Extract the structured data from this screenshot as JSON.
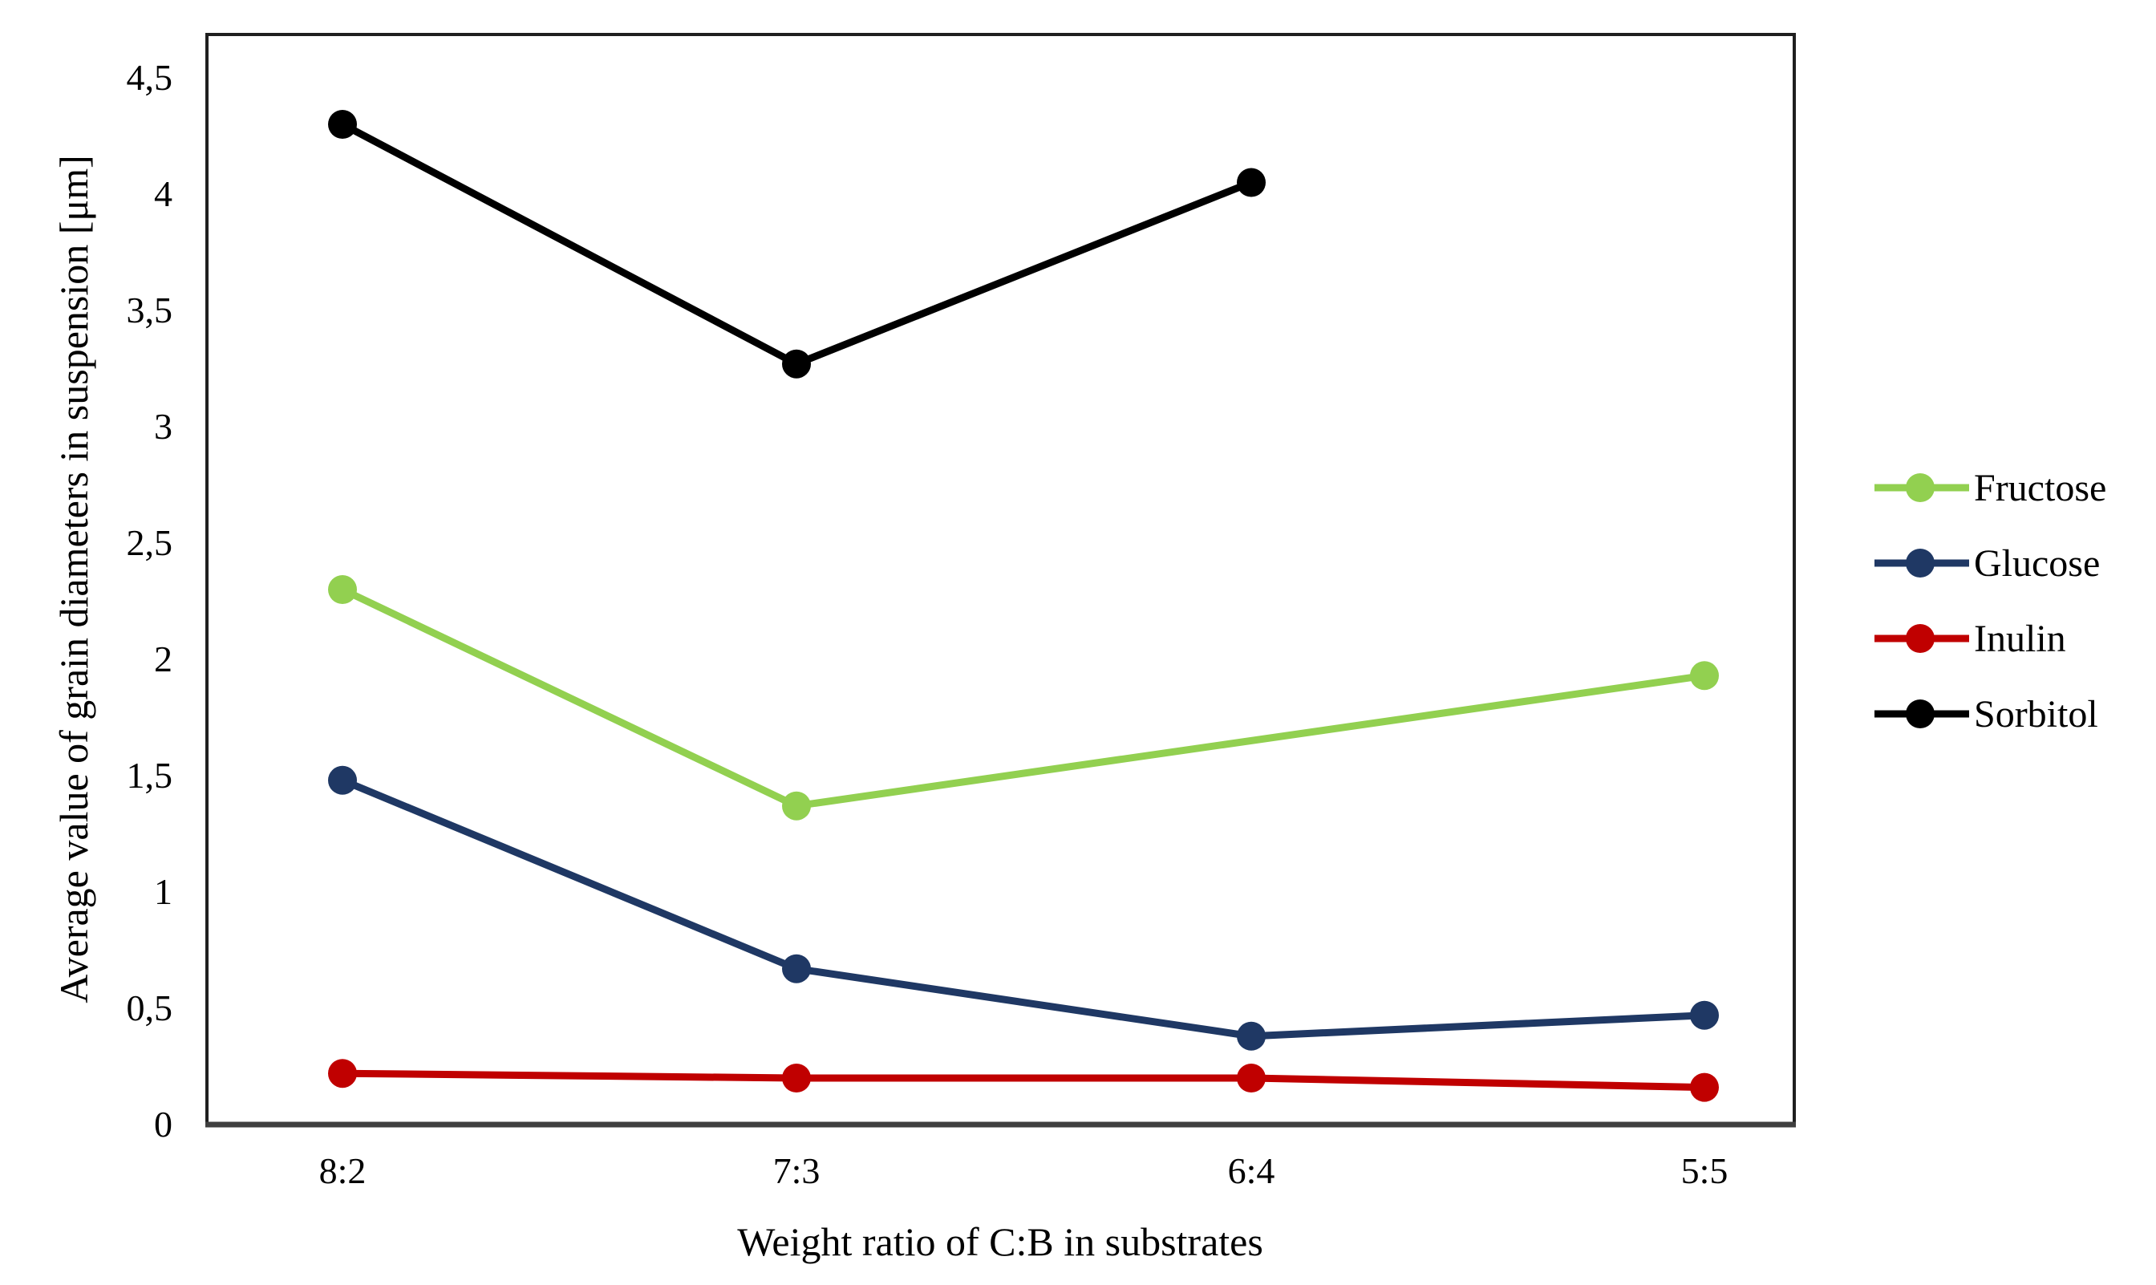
{
  "chart_data": {
    "type": "line",
    "title": "",
    "xlabel": "Weight ratio of C:B in substrates",
    "ylabel": "Average value of grain diameters in suspension [μm]",
    "categories": [
      "8:2",
      "7:3",
      "6:4",
      "5:5"
    ],
    "series": [
      {
        "name": "Fructose",
        "color": "#92D050",
        "values": [
          2.3,
          1.37,
          null,
          1.93
        ]
      },
      {
        "name": "Glucose",
        "color": "#1F3864",
        "values": [
          1.48,
          0.67,
          0.38,
          0.47
        ]
      },
      {
        "name": "Inulin",
        "color": "#C00000",
        "values": [
          0.22,
          0.2,
          0.2,
          0.16
        ]
      },
      {
        "name": "Sorbitol",
        "color": "#000000",
        "values": [
          4.3,
          3.27,
          4.05,
          null
        ]
      }
    ],
    "y_ticks": [
      "0",
      "0,5",
      "1",
      "1,5",
      "2",
      "2,5",
      "3",
      "3,5",
      "4",
      "4,5"
    ],
    "y_tick_values": [
      0,
      0.5,
      1,
      1.5,
      2,
      2.5,
      3,
      3.5,
      4,
      4.5
    ],
    "ylim": [
      0,
      4.69
    ],
    "decimal_separator": ",",
    "grid": false,
    "legend_position": "right",
    "axis_color": "#1f1f1f",
    "baseline_color": "#3f3f3f"
  }
}
